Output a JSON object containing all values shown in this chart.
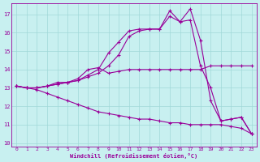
{
  "xlabel": "Windchill (Refroidissement éolien,°C)",
  "background_color": "#c8f0f0",
  "grid_color": "#a0d8d8",
  "line_color": "#990099",
  "xlim": [
    -0.5,
    23.5
  ],
  "ylim": [
    9.8,
    17.6
  ],
  "yticks": [
    10,
    11,
    12,
    13,
    14,
    15,
    16,
    17
  ],
  "xticks": [
    0,
    1,
    2,
    3,
    4,
    5,
    6,
    7,
    8,
    9,
    10,
    11,
    12,
    13,
    14,
    15,
    16,
    17,
    18,
    19,
    20,
    21,
    22,
    23
  ],
  "line1_x": [
    0,
    1,
    2,
    3,
    4,
    5,
    6,
    7,
    8,
    9,
    10,
    11,
    12,
    13,
    14,
    15,
    16,
    17,
    18,
    19,
    20,
    21,
    22,
    23
  ],
  "line1_y": [
    13.1,
    13.0,
    13.0,
    13.1,
    13.3,
    13.3,
    13.5,
    14.0,
    14.1,
    13.8,
    13.9,
    14.0,
    14.0,
    14.0,
    14.0,
    14.0,
    14.0,
    14.0,
    14.0,
    14.2,
    14.2,
    14.2,
    14.2,
    14.2
  ],
  "line2_x": [
    0,
    1,
    2,
    3,
    4,
    5,
    6,
    7,
    8,
    9,
    10,
    11,
    12,
    13,
    14,
    15,
    16,
    17,
    18,
    19,
    20,
    21,
    22,
    23
  ],
  "line2_y": [
    13.1,
    13.0,
    13.0,
    13.1,
    13.2,
    13.3,
    13.4,
    13.7,
    14.0,
    14.9,
    15.5,
    16.1,
    16.2,
    16.2,
    16.2,
    17.2,
    16.6,
    16.7,
    14.2,
    13.0,
    11.2,
    11.3,
    11.4,
    10.5
  ],
  "line3_x": [
    0,
    1,
    2,
    3,
    4,
    5,
    6,
    7,
    8,
    9,
    10,
    11,
    12,
    13,
    14,
    15,
    16,
    17,
    18,
    19,
    20,
    21,
    22,
    23
  ],
  "line3_y": [
    13.1,
    13.0,
    13.0,
    13.1,
    13.2,
    13.3,
    13.4,
    13.6,
    13.8,
    14.2,
    14.8,
    15.8,
    16.1,
    16.2,
    16.2,
    16.9,
    16.6,
    17.3,
    15.6,
    12.3,
    11.2,
    11.3,
    11.4,
    10.5
  ],
  "line4_x": [
    0,
    1,
    2,
    3,
    4,
    5,
    6,
    7,
    8,
    9,
    10,
    11,
    12,
    13,
    14,
    15,
    16,
    17,
    18,
    19,
    20,
    21,
    22,
    23
  ],
  "line4_y": [
    13.1,
    13.0,
    12.9,
    12.7,
    12.5,
    12.3,
    12.1,
    11.9,
    11.7,
    11.6,
    11.5,
    11.4,
    11.3,
    11.3,
    11.2,
    11.1,
    11.1,
    11.0,
    11.0,
    11.0,
    11.0,
    10.9,
    10.8,
    10.5
  ]
}
